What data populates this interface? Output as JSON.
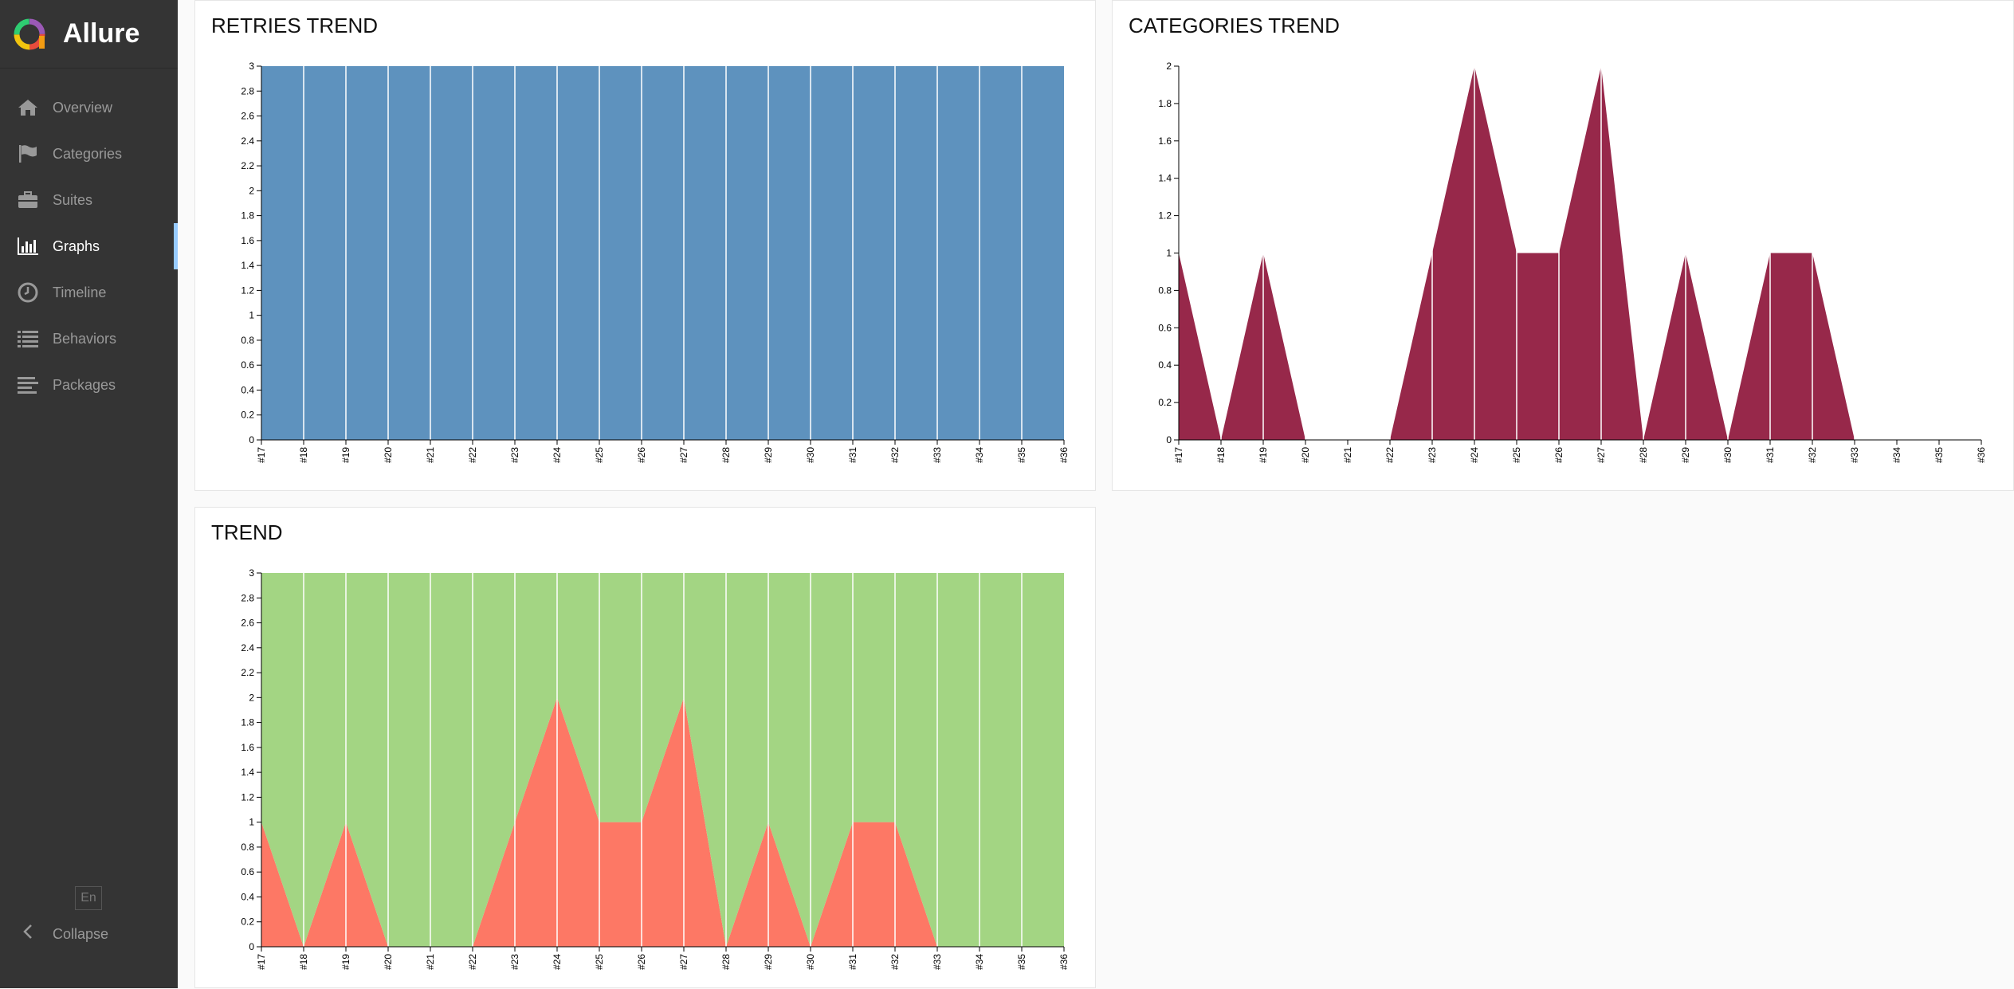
{
  "app": {
    "name": "Allure"
  },
  "sidebar": {
    "items": [
      {
        "label": "Overview",
        "icon": "home-icon"
      },
      {
        "label": "Categories",
        "icon": "flag-icon"
      },
      {
        "label": "Suites",
        "icon": "briefcase-icon"
      },
      {
        "label": "Graphs",
        "icon": "bar-chart-icon",
        "active": true
      },
      {
        "label": "Timeline",
        "icon": "clock-icon"
      },
      {
        "label": "Behaviors",
        "icon": "list-icon"
      },
      {
        "label": "Packages",
        "icon": "align-left-icon"
      }
    ],
    "language": "En",
    "collapse_label": "Collapse"
  },
  "colors": {
    "sidebar_bg": "#343434",
    "active_accent": "#97cbff",
    "retries": "#5e92be",
    "categories": "#97284a",
    "passed": "#a3d583",
    "failed": "#fd7865"
  },
  "widgets": {
    "retries": {
      "title": "RETRIES TREND"
    },
    "categories": {
      "title": "CATEGORIES TREND"
    },
    "trend": {
      "title": "TREND"
    }
  },
  "chart_data": [
    {
      "id": "retries",
      "type": "area",
      "title": "RETRIES TREND",
      "categories": [
        "#17",
        "#18",
        "#19",
        "#20",
        "#21",
        "#22",
        "#23",
        "#24",
        "#25",
        "#26",
        "#27",
        "#28",
        "#29",
        "#30",
        "#31",
        "#32",
        "#33",
        "#34",
        "#35",
        "#36"
      ],
      "series": [
        {
          "values": [
            3,
            3,
            3,
            3,
            3,
            3,
            3,
            3,
            3,
            3,
            3,
            3,
            3,
            3,
            3,
            3,
            3,
            3,
            3,
            3
          ],
          "color": "#5e92be"
        }
      ],
      "ylim": [
        0,
        3
      ],
      "yticks": [
        "0",
        "0.2",
        "0.4",
        "0.6",
        "0.8",
        "1",
        "1.2",
        "1.4",
        "1.6",
        "1.8",
        "2",
        "2.2",
        "2.4",
        "2.6",
        "2.8",
        "3"
      ]
    },
    {
      "id": "categories",
      "type": "area",
      "title": "CATEGORIES TREND",
      "categories": [
        "#17",
        "#18",
        "#19",
        "#20",
        "#21",
        "#22",
        "#23",
        "#24",
        "#25",
        "#26",
        "#27",
        "#28",
        "#29",
        "#30",
        "#31",
        "#32",
        "#33",
        "#34",
        "#35",
        "#36"
      ],
      "series": [
        {
          "values": [
            1,
            0,
            1,
            0,
            0,
            0,
            1,
            2,
            1,
            1,
            2,
            0,
            1,
            0,
            1,
            1,
            0,
            0,
            0,
            0
          ],
          "color": "#97284a"
        }
      ],
      "ylim": [
        0,
        2
      ],
      "yticks": [
        "0",
        "0.2",
        "0.4",
        "0.6",
        "0.8",
        "1",
        "1.2",
        "1.4",
        "1.6",
        "1.8",
        "2"
      ]
    },
    {
      "id": "trend",
      "type": "area",
      "title": "TREND",
      "stacked": true,
      "categories": [
        "#17",
        "#18",
        "#19",
        "#20",
        "#21",
        "#22",
        "#23",
        "#24",
        "#25",
        "#26",
        "#27",
        "#28",
        "#29",
        "#30",
        "#31",
        "#32",
        "#33",
        "#34",
        "#35",
        "#36"
      ],
      "series": [
        {
          "values": [
            1,
            0,
            1,
            0,
            0,
            0,
            1,
            2,
            1,
            1,
            2,
            0,
            1,
            0,
            1,
            1,
            0,
            0,
            0,
            0
          ],
          "color": "#fd7865"
        },
        {
          "values": [
            2,
            3,
            2,
            3,
            3,
            3,
            2,
            1,
            2,
            2,
            1,
            3,
            2,
            3,
            2,
            2,
            3,
            3,
            3,
            3
          ],
          "color": "#a3d583"
        }
      ],
      "ylim": [
        0,
        3
      ],
      "yticks": [
        "0",
        "0.2",
        "0.4",
        "0.6",
        "0.8",
        "1",
        "1.2",
        "1.4",
        "1.6",
        "1.8",
        "2",
        "2.2",
        "2.4",
        "2.6",
        "2.8",
        "3"
      ]
    }
  ]
}
